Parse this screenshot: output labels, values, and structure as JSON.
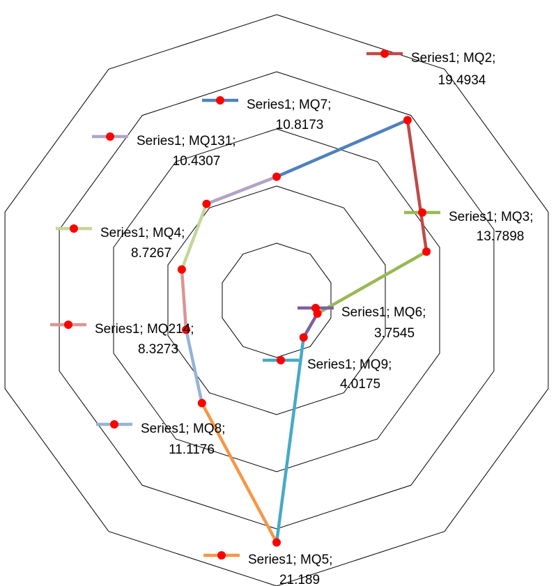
{
  "chart_data": {
    "type": "radar",
    "title": "",
    "categories": [
      "MQ2",
      "MQ3",
      "MQ6",
      "MQ9",
      "MQ5",
      "MQ8",
      "MQ214",
      "MQ4",
      "MQ131",
      "MQ7"
    ],
    "series": [
      {
        "name": "Series1",
        "values": [
          19.4934,
          13.7898,
          3.7545,
          4.0175,
          21.189,
          11.1176,
          8.3273,
          8.7267,
          10.4307,
          10.8173
        ]
      }
    ],
    "rlim": [
      0,
      25
    ],
    "gridlines": [
      5,
      10,
      15,
      20,
      25
    ],
    "grid": true,
    "marker_color": "#ff0000",
    "segment_colors": [
      "#be4b48",
      "#98b954",
      "#7d60a0",
      "#46aac5",
      "#f79646",
      "#95b3d7",
      "#d99694",
      "#c3d69b",
      "#b3a2c7",
      "#4f81bd"
    ],
    "data_labels": [
      {
        "series": "Series1",
        "category": "MQ2",
        "value": "19.4934",
        "line1": "Series1; MQ2;",
        "line2": "19.4934"
      },
      {
        "series": "Series1",
        "category": "MQ3",
        "value": "13.7898",
        "line1": "Series1; MQ3;",
        "line2": "13.7898"
      },
      {
        "series": "Series1",
        "category": "MQ6",
        "value": "3.7545",
        "line1": "Series1; MQ6;",
        "line2": "3.7545"
      },
      {
        "series": "Series1",
        "category": "MQ9",
        "value": "4.0175",
        "line1": "Series1; MQ9;",
        "line2": "4.0175"
      },
      {
        "series": "Series1",
        "category": "MQ5",
        "value": "21.189",
        "line1": "Series1; MQ5;",
        "line2": "21.189"
      },
      {
        "series": "Series1",
        "category": "MQ8",
        "value": "11.1176",
        "line1": "Series1; MQ8;",
        "line2": "11.1176"
      },
      {
        "series": "Series1",
        "category": "MQ214",
        "value": "8.3273",
        "line1": "Series1; MQ214;",
        "line2": "8.3273"
      },
      {
        "series": "Series1",
        "category": "MQ4",
        "value": "8.7267",
        "line1": "Series1; MQ4;",
        "line2": "8.7267"
      },
      {
        "series": "Series1",
        "category": "MQ131",
        "value": "10.4307",
        "line1": "Series1; MQ131;",
        "line2": "10.4307"
      },
      {
        "series": "Series1",
        "category": "MQ7",
        "value": "10.8173",
        "line1": "Series1; MQ7;",
        "line2": "10.8173"
      }
    ]
  }
}
